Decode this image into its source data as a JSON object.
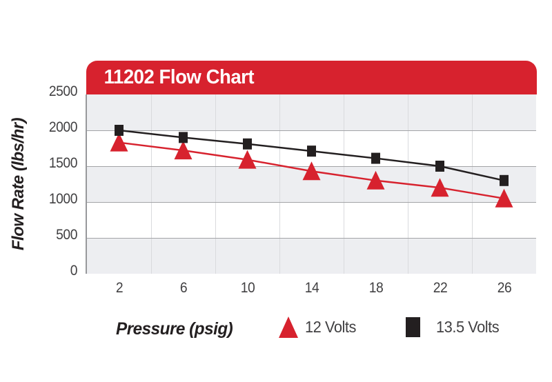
{
  "header": {
    "title": "11202 Flow Chart",
    "background": "#d7222e",
    "text_color": "#ffffff"
  },
  "chart_data": {
    "type": "line",
    "title": "11202 Flow Chart",
    "xlabel": "Pressure (psig)",
    "ylabel": "Flow Rate (lbs/hr)",
    "x": [
      2,
      6,
      10,
      14,
      18,
      22,
      26
    ],
    "yticks": [
      0,
      500,
      1000,
      1500,
      2000,
      2500
    ],
    "ylim": [
      0,
      2500
    ],
    "series": [
      {
        "name": "12 Volts",
        "marker": "triangle",
        "color": "#d7222e",
        "values": [
          1830,
          1720,
          1590,
          1430,
          1300,
          1200,
          1050
        ]
      },
      {
        "name": "13.5 Volts",
        "marker": "square",
        "color": "#231f20",
        "values": [
          2000,
          1900,
          1810,
          1710,
          1610,
          1500,
          1300
        ]
      }
    ],
    "grid": true,
    "legend_position": "bottom",
    "band_colors": [
      "#edeef1",
      "#ffffff"
    ],
    "h_gridline_color": "#a2a3a6",
    "v_gridline_color": "#d9dadd",
    "axis_color": "#97989b",
    "tick_text_color": "#414042",
    "label_text_color": "#231f20"
  }
}
